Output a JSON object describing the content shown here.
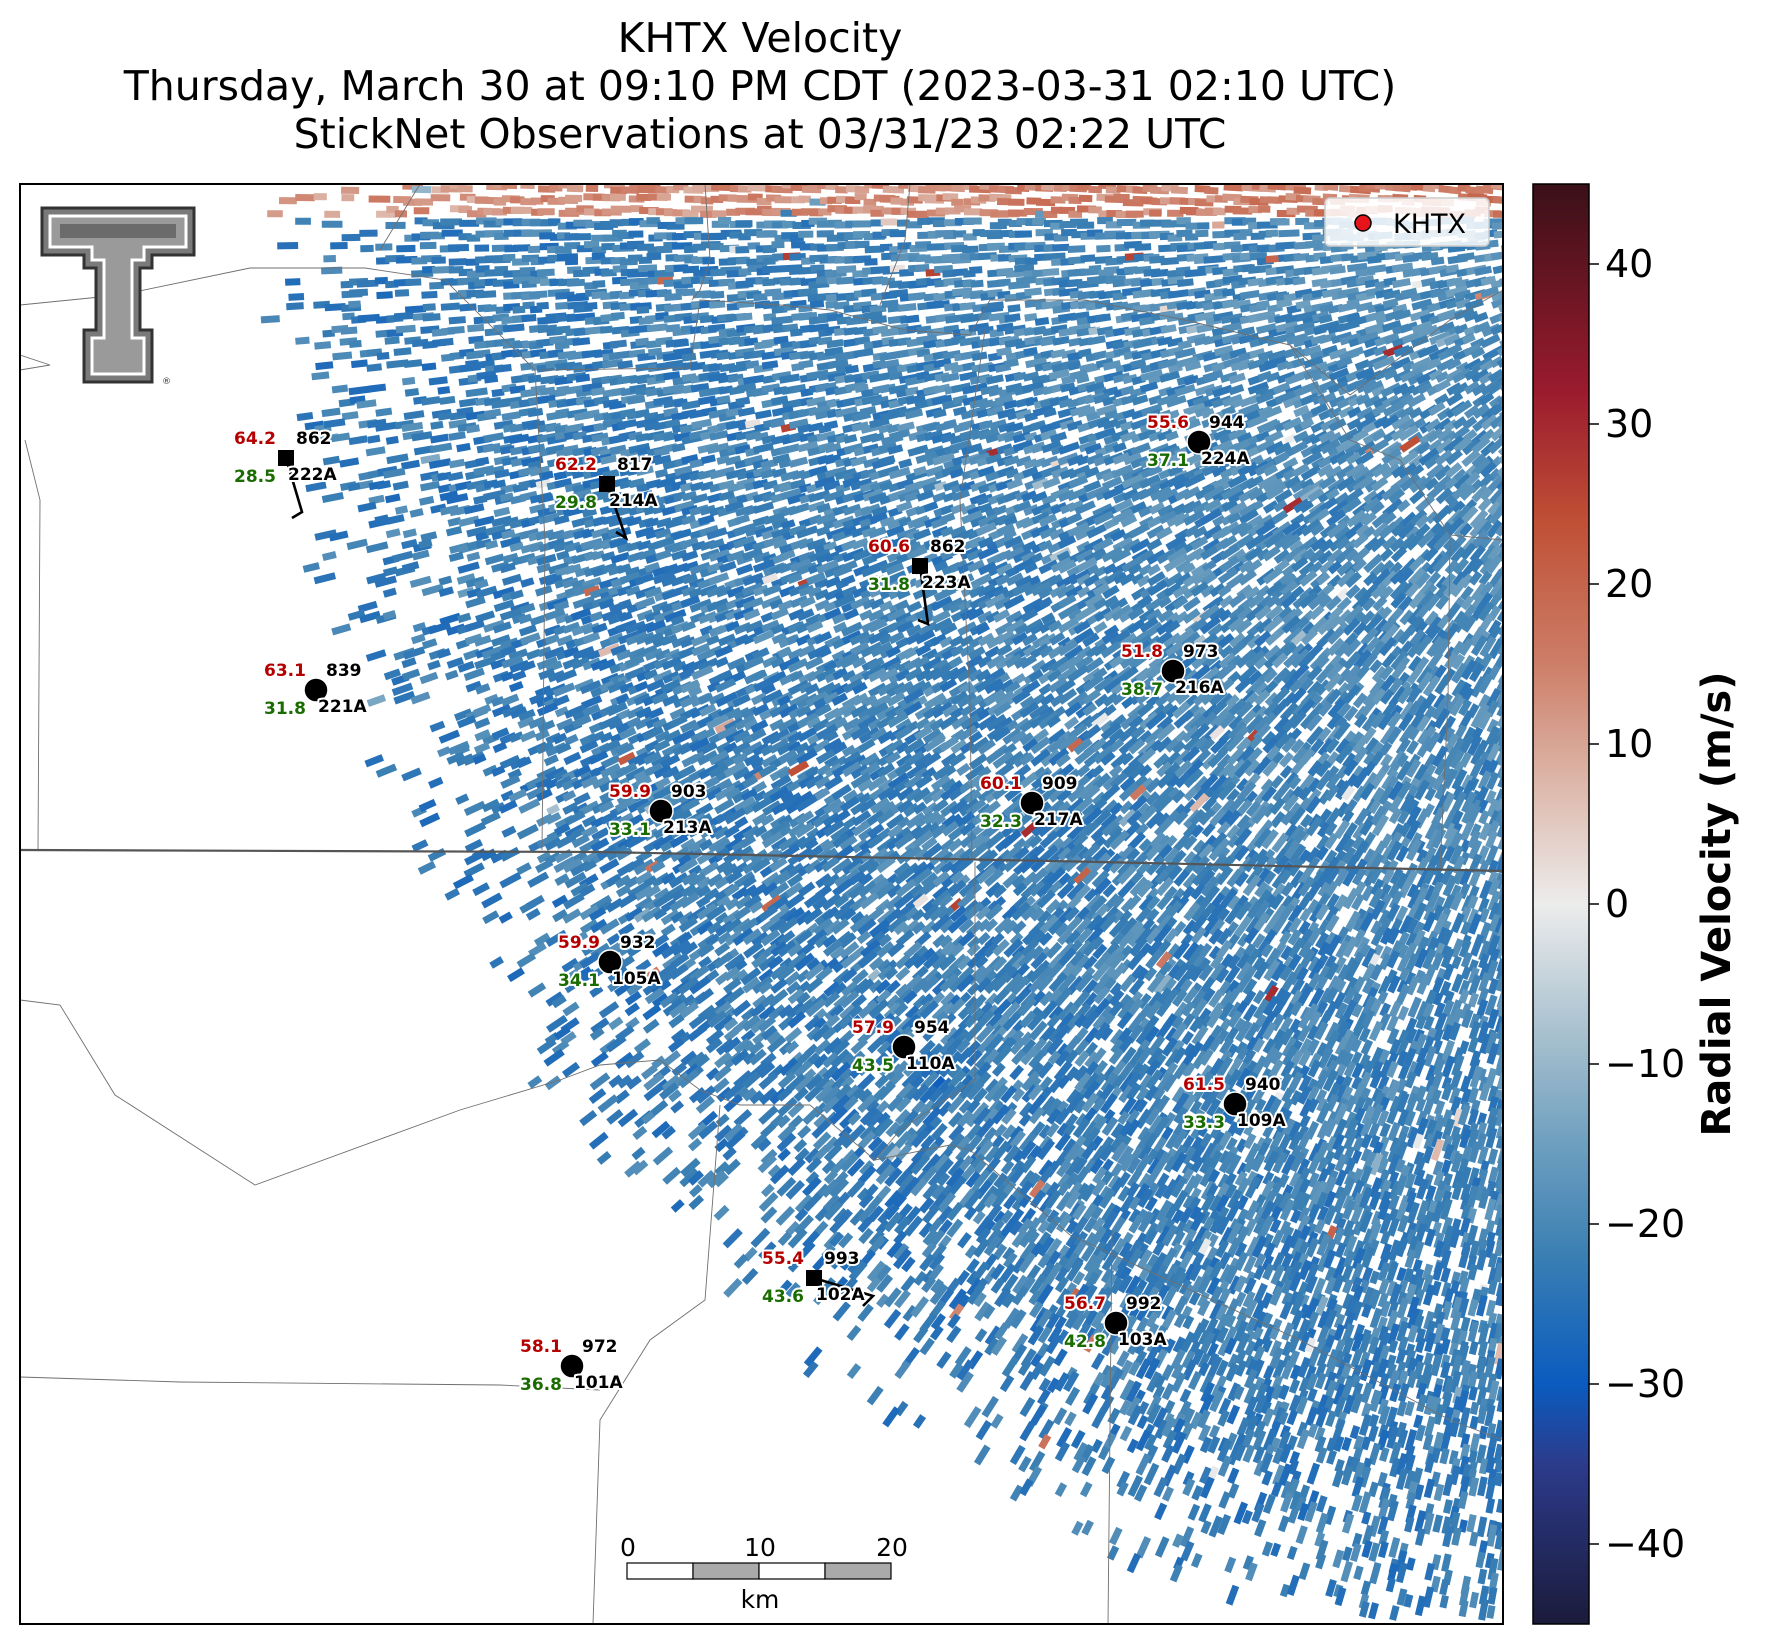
{
  "title": {
    "line1": "KHTX Velocity",
    "line2": "Thursday, March 30 at 09:10 PM CDT (2023-03-31 02:10 UTC)",
    "line3": "StickNet Observations at 03/31/23 02:22 UTC"
  },
  "legend": {
    "label": "KHTX",
    "marker_color": "#e8141c"
  },
  "colorbar": {
    "label": "Radial Velocity (m/s)",
    "min": -45,
    "max": 45,
    "ticks": [
      -40,
      -30,
      -20,
      -10,
      0,
      10,
      20,
      30,
      40
    ],
    "tick_labels": [
      "−40",
      "−30",
      "−20",
      "−10",
      "0",
      "10",
      "20",
      "30",
      "40"
    ],
    "stops": [
      {
        "v": -45,
        "c": "#1b1b3a"
      },
      {
        "v": -35,
        "c": "#2c3b8c"
      },
      {
        "v": -30,
        "c": "#0a5bbf"
      },
      {
        "v": -22,
        "c": "#3a7fb3"
      },
      {
        "v": -15,
        "c": "#6e9fbf"
      },
      {
        "v": -8,
        "c": "#a9c1cf"
      },
      {
        "v": 0,
        "c": "#ececec"
      },
      {
        "v": 8,
        "c": "#dcb4a6"
      },
      {
        "v": 15,
        "c": "#cd7e68"
      },
      {
        "v": 24,
        "c": "#bf4f35"
      },
      {
        "v": 32,
        "c": "#9b1b2e"
      },
      {
        "v": 45,
        "c": "#3a1018"
      }
    ]
  },
  "scalebar": {
    "labels": [
      "0",
      "10",
      "20"
    ],
    "unit": "km"
  },
  "logo": {
    "name": "Texas Tech Double T"
  },
  "stations": [
    {
      "id": "222A",
      "temp": "64.2",
      "pres": "862",
      "dew": "28.5",
      "type": "square",
      "barb": true
    },
    {
      "id": "214A",
      "temp": "62.2",
      "pres": "817",
      "dew": "29.8",
      "type": "square",
      "barb": true
    },
    {
      "id": "223A",
      "temp": "60.6",
      "pres": "862",
      "dew": "31.8",
      "type": "square",
      "barb": true
    },
    {
      "id": "224A",
      "temp": "55.6",
      "pres": "944",
      "dew": "37.1",
      "type": "circle",
      "barb": false
    },
    {
      "id": "221A",
      "temp": "63.1",
      "pres": "839",
      "dew": "31.8",
      "type": "circle",
      "barb": false
    },
    {
      "id": "216A",
      "temp": "51.8",
      "pres": "973",
      "dew": "38.7",
      "type": "circle",
      "barb": false
    },
    {
      "id": "213A",
      "temp": "59.9",
      "pres": "903",
      "dew": "33.1",
      "type": "circle",
      "barb": false
    },
    {
      "id": "217A",
      "temp": "60.1",
      "pres": "909",
      "dew": "32.3",
      "type": "circle",
      "barb": false
    },
    {
      "id": "105A",
      "temp": "59.9",
      "pres": "932",
      "dew": "34.1",
      "type": "circle",
      "barb": false
    },
    {
      "id": "110A",
      "temp": "57.9",
      "pres": "954",
      "dew": "43.5",
      "type": "circle",
      "barb": false
    },
    {
      "id": "109A",
      "temp": "61.5",
      "pres": "940",
      "dew": "33.3",
      "type": "circle",
      "barb": false
    },
    {
      "id": "102A",
      "temp": "55.4",
      "pres": "993",
      "dew": "43.6",
      "type": "square",
      "barb": true
    },
    {
      "id": "103A",
      "temp": "56.7",
      "pres": "992",
      "dew": "42.8",
      "type": "circle",
      "barb": false
    },
    {
      "id": "101A",
      "temp": "58.1",
      "pres": "972",
      "dew": "36.8",
      "type": "circle",
      "barb": false
    }
  ]
}
